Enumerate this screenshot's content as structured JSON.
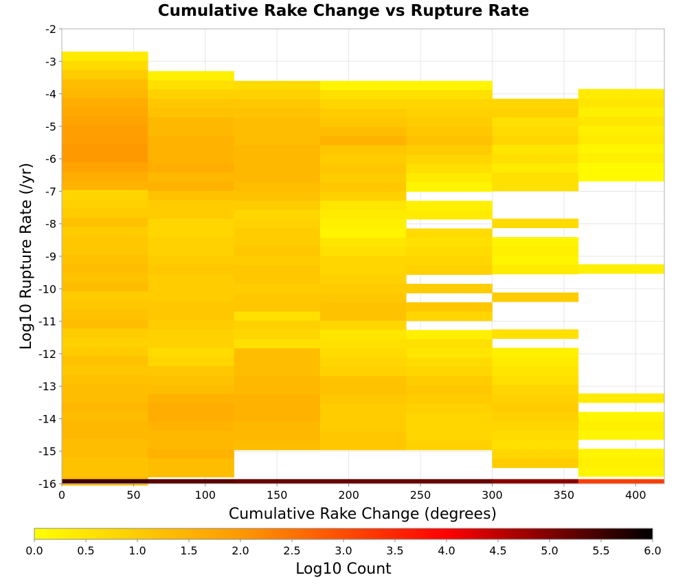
{
  "chart_data": {
    "type": "heatmap",
    "title": "Cumulative Rake Change vs Rupture Rate",
    "xlabel": "Cumulative Rake Change (degrees)",
    "ylabel": "Log10 Rupture Rate (/yr)",
    "xlim": [
      0,
      420
    ],
    "ylim": [
      -16,
      -2
    ],
    "xticks": [
      "0",
      "50",
      "100",
      "150",
      "200",
      "250",
      "300",
      "350",
      "400"
    ],
    "yticks": [
      "-2",
      "-3",
      "-4",
      "-5",
      "-6",
      "-7",
      "-8",
      "-9",
      "-10",
      "-11",
      "-12",
      "-13",
      "-14",
      "-15",
      "-16"
    ],
    "grid": true,
    "x_bin_edges": [
      0,
      60,
      120,
      180,
      240,
      300,
      360,
      420
    ],
    "y_bin_width": 0.284,
    "colorbar": {
      "label": "Log10 Count",
      "range": [
        0.0,
        6.0
      ],
      "ticks": [
        "0.0",
        "0.5",
        "1.0",
        "1.5",
        "2.0",
        "2.5",
        "3.0",
        "3.5",
        "4.0",
        "4.5",
        "5.0",
        "5.5",
        "6.0"
      ],
      "colors": [
        "#ffff00",
        "#ff9900",
        "#ff0000",
        "#000000"
      ]
    },
    "columns": [
      {
        "x_start": 0,
        "x_end": 60,
        "y_top": -2.7,
        "values": [
          0.4,
          0.7,
          1.0,
          1.3,
          1.4,
          1.6,
          1.7,
          1.8,
          1.9,
          1.9,
          2.0,
          2.0,
          1.8,
          1.6,
          1.5,
          0.8,
          0.9,
          1.0,
          1.2,
          1.0,
          1.1,
          1.1,
          1.2,
          1.3,
          1.2,
          1.3,
          1.0,
          1.1,
          1.2,
          1.3,
          1.0,
          0.9,
          1.0,
          1.2,
          1.1,
          1.2,
          1.3,
          1.3,
          1.4,
          1.3,
          1.4,
          1.4,
          1.3,
          1.3,
          1.2,
          1.2,
          1.3,
          5.5
        ]
      },
      {
        "x_start": 60,
        "x_end": 120,
        "y_top": -3.3,
        "values": [
          0.3,
          0.6,
          0.9,
          1.1,
          1.2,
          1.4,
          1.4,
          1.5,
          1.5,
          1.5,
          1.6,
          1.4,
          1.5,
          1.2,
          1.0,
          1.0,
          0.8,
          0.8,
          0.9,
          0.9,
          1.0,
          1.1,
          1.0,
          1.0,
          1.0,
          1.1,
          1.1,
          1.0,
          0.9,
          0.9,
          0.7,
          0.8,
          1.1,
          1.2,
          1.3,
          1.5,
          1.6,
          1.6,
          1.5,
          1.4,
          1.4,
          1.5,
          1.3,
          1.3,
          5.3
        ]
      },
      {
        "x_start": 120,
        "x_end": 180,
        "y_top": -3.6,
        "values": [
          0.7,
          0.9,
          1.1,
          1.2,
          1.3,
          1.3,
          1.3,
          1.4,
          1.4,
          1.4,
          1.4,
          1.3,
          1.2,
          1.0,
          0.8,
          0.9,
          1.0,
          1.0,
          1.1,
          1.0,
          1.1,
          1.1,
          1.0,
          1.1,
          1.1,
          0.6,
          0.9,
          0.8,
          0.6,
          1.3,
          1.3,
          1.3,
          1.4,
          1.4,
          1.5,
          1.5,
          1.5,
          1.4,
          1.4,
          1.3,
          5.2
        ]
      },
      {
        "x_start": 180,
        "x_end": 240,
        "y_top": -3.6,
        "values": [
          0.2,
          0.6,
          0.8,
          1.0,
          1.1,
          1.3,
          1.5,
          1.1,
          1.0,
          1.1,
          1.0,
          1.1,
          0.9,
          0.5,
          0.4,
          0.3,
          0.2,
          0.5,
          0.6,
          0.8,
          0.8,
          0.9,
          1.0,
          1.1,
          1.2,
          1.2,
          0.8,
          0.5,
          0.6,
          0.7,
          0.8,
          0.9,
          1.2,
          1.2,
          1.1,
          1.0,
          1.0,
          1.0,
          1.1,
          1.1,
          5.2
        ]
      },
      {
        "x_start": 240,
        "x_end": 300,
        "y_top": -3.6,
        "values": [
          0.2,
          0.6,
          0.8,
          0.9,
          1.0,
          1.1,
          1.2,
          1.0,
          0.8,
          0.6,
          0.4,
          0.2,
          null,
          0.3,
          0.4,
          null,
          0.7,
          0.6,
          0.7,
          0.8,
          0.9,
          null,
          1.0,
          null,
          1.1,
          0.8,
          null,
          0.3,
          0.6,
          0.5,
          0.7,
          0.8,
          1.0,
          1.1,
          1.0,
          0.9,
          0.8,
          0.8,
          0.8,
          0.9,
          5.2
        ]
      },
      {
        "x_start": 300,
        "x_end": 360,
        "y_top": -4.15,
        "values": [
          0.8,
          0.9,
          0.6,
          0.7,
          0.8,
          0.5,
          0.6,
          0.4,
          0.6,
          0.6,
          null,
          null,
          null,
          0.7,
          null,
          0.2,
          0.3,
          0.2,
          0.4,
          null,
          null,
          1.0,
          null,
          null,
          null,
          0.6,
          null,
          0.3,
          0.4,
          0.5,
          0.6,
          0.8,
          0.9,
          1.0,
          0.9,
          0.8,
          0.7,
          0.6,
          0.8,
          1.0,
          4.9
        ]
      },
      {
        "x_start": 360,
        "x_end": 420,
        "y_top": -3.85,
        "values": [
          0.4,
          0.5,
          0.3,
          0.5,
          0.3,
          0.4,
          0.2,
          0.3,
          0.1,
          0.1,
          null,
          null,
          null,
          null,
          null,
          null,
          null,
          null,
          null,
          0.3,
          null,
          null,
          null,
          null,
          null,
          null,
          null,
          null,
          null,
          null,
          null,
          null,
          null,
          0.4,
          null,
          0.2,
          0.3,
          0.2,
          null,
          0.2,
          0.3,
          0.2,
          null,
          3.2
        ]
      }
    ]
  }
}
